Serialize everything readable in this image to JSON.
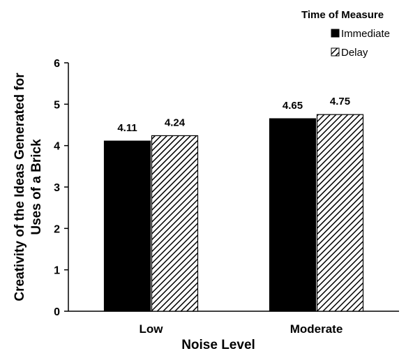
{
  "chart_data": {
    "type": "bar",
    "categories": [
      "Low",
      "Moderate"
    ],
    "series": [
      {
        "name": "Immediate",
        "values": [
          4.11,
          4.65
        ],
        "fill": "solid",
        "color": "#000000"
      },
      {
        "name": "Delay",
        "values": [
          4.24,
          4.75
        ],
        "fill": "diagonal-hatch",
        "color": "#000000"
      }
    ],
    "data_labels": [
      [
        "4.11",
        "4.65"
      ],
      [
        "4.24",
        "4.75"
      ]
    ],
    "xlabel": "Noise Level",
    "ylabel_lines": [
      "Creativity of the Ideas Generated for",
      "Uses of a Brick"
    ],
    "ylim": [
      0,
      6
    ],
    "yticks": [
      0,
      1,
      2,
      3,
      4,
      5,
      6
    ],
    "grid": false,
    "legend": {
      "title": "Time of Measure",
      "placement": "top-right"
    }
  }
}
